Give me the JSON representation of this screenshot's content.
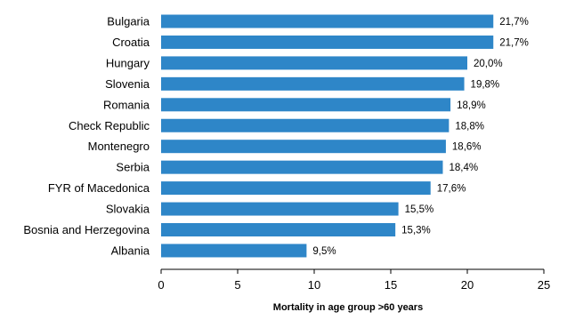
{
  "chart_data": {
    "type": "bar",
    "orientation": "horizontal",
    "categories": [
      "Bulgaria",
      "Croatia",
      "Hungary",
      "Slovenia",
      "Romania",
      "Check Republic",
      "Montenegro",
      "Serbia",
      "FYR of Macedonica",
      "Slovakia",
      "Bosnia and Herzegovina",
      "Albania"
    ],
    "values": [
      21.7,
      21.7,
      20.0,
      19.8,
      18.9,
      18.8,
      18.6,
      18.4,
      17.6,
      15.5,
      15.3,
      9.5
    ],
    "data_labels": [
      "21,7%",
      "21,7%",
      "20,0%",
      "19,8%",
      "18,9%",
      "18,8%",
      "18,6%",
      "18,4%",
      "17,6%",
      "15,5%",
      "15,3%",
      "9,5%"
    ],
    "title": "",
    "xlabel": "Mortality in age group >60 years",
    "ylabel": "",
    "xlim": [
      0,
      25
    ],
    "x_ticks": [
      0,
      5,
      10,
      15,
      20,
      25
    ],
    "grid": false,
    "legend": "none",
    "bar_color": "#2e86c8"
  }
}
